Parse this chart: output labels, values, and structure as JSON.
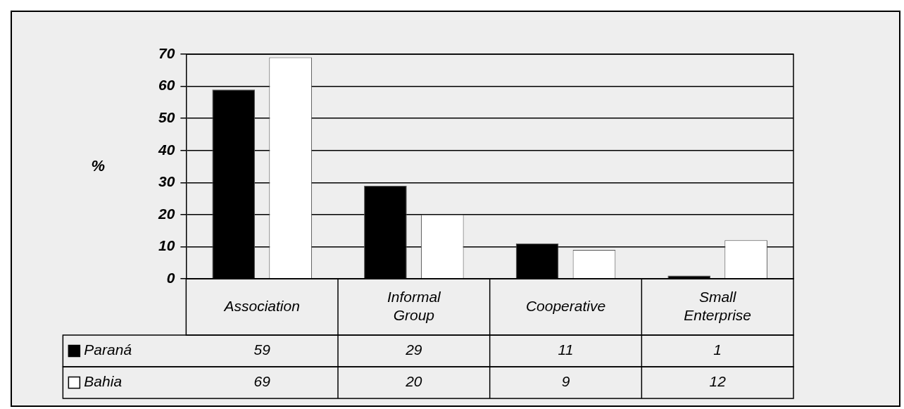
{
  "chart_data": {
    "type": "bar",
    "ylabel": "%",
    "categories": [
      "Association",
      "Informal Group",
      "Cooperative",
      "Small Enterprise"
    ],
    "series": [
      {
        "name": "Paraná",
        "color": "#000000",
        "values": [
          59,
          29,
          11,
          1
        ]
      },
      {
        "name": "Bahia",
        "color": "#ffffff",
        "values": [
          69,
          20,
          9,
          12
        ]
      }
    ],
    "ylim": [
      0,
      70
    ],
    "yticks": [
      0,
      10,
      20,
      30,
      40,
      50,
      60,
      70
    ],
    "grid": "y",
    "legend": "bottom",
    "data_labels": true
  }
}
